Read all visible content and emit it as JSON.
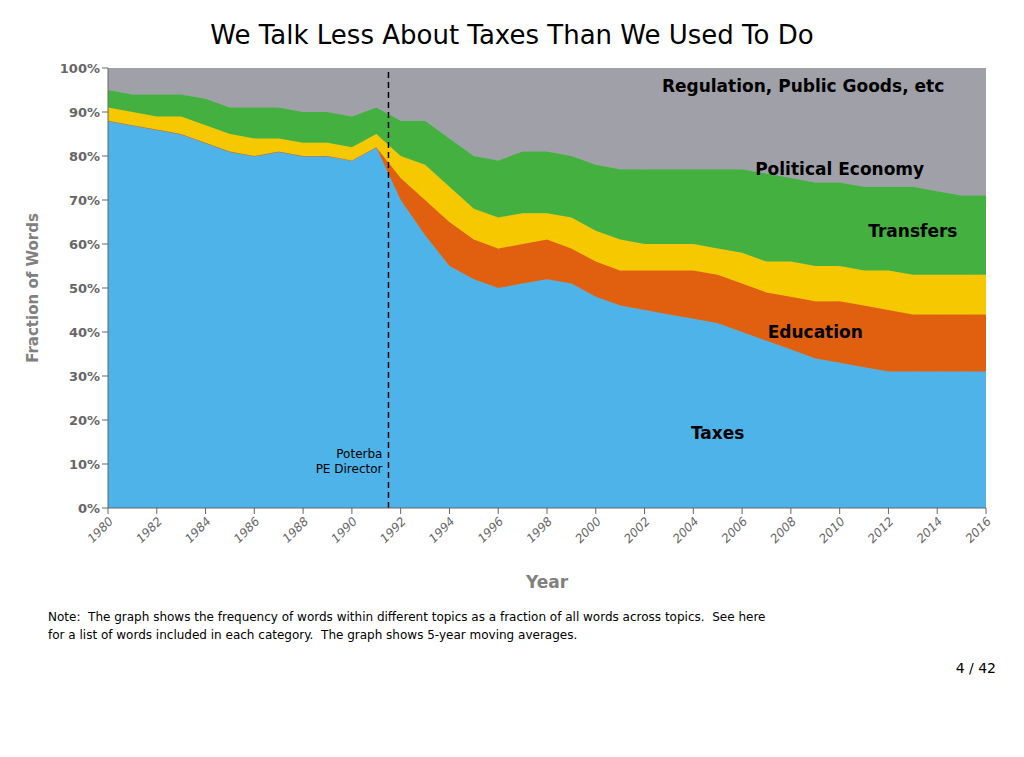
{
  "chart_data": {
    "type": "area",
    "stacked": true,
    "title": "We Talk Less About Taxes Than We Used To Do",
    "x_label": "Year",
    "y_label": "Fraction of Words",
    "x": [
      1980,
      1981,
      1982,
      1983,
      1984,
      1985,
      1986,
      1987,
      1988,
      1989,
      1990,
      1991,
      1992,
      1993,
      1994,
      1995,
      1996,
      1997,
      1998,
      1999,
      2000,
      2001,
      2002,
      2003,
      2004,
      2005,
      2006,
      2007,
      2008,
      2009,
      2010,
      2011,
      2012,
      2013,
      2014,
      2015,
      2016
    ],
    "series": [
      {
        "name": "Taxes",
        "color": "#4db3e8",
        "values": [
          88,
          87,
          86,
          85,
          83,
          81,
          80,
          81,
          80,
          80,
          79,
          82,
          70,
          62,
          55,
          52,
          50,
          51,
          52,
          51,
          48,
          46,
          45,
          44,
          43,
          42,
          40,
          38,
          36,
          34,
          33,
          32,
          31,
          31,
          31,
          31,
          31
        ]
      },
      {
        "name": "Education",
        "color": "#e06010",
        "values": [
          0,
          0,
          0,
          0,
          0,
          0,
          0,
          0,
          0,
          0,
          0,
          0,
          5,
          8,
          10,
          9,
          9,
          9,
          9,
          8,
          8,
          8,
          9,
          10,
          11,
          11,
          11,
          11,
          12,
          13,
          14,
          14,
          14,
          13,
          13,
          13,
          13
        ]
      },
      {
        "name": "Transfers",
        "color": "#f5c800",
        "values": [
          3,
          3,
          3,
          4,
          4,
          4,
          4,
          3,
          3,
          3,
          3,
          3,
          5,
          8,
          8,
          7,
          7,
          7,
          6,
          7,
          7,
          7,
          6,
          6,
          6,
          6,
          7,
          7,
          8,
          8,
          8,
          8,
          9,
          9,
          9,
          9,
          9
        ]
      },
      {
        "name": "Political Economy",
        "color": "#44b040",
        "values": [
          4,
          4,
          5,
          5,
          6,
          6,
          7,
          7,
          7,
          7,
          7,
          6,
          8,
          10,
          11,
          12,
          13,
          14,
          14,
          14,
          15,
          16,
          17,
          17,
          17,
          18,
          19,
          20,
          19,
          19,
          19,
          19,
          19,
          20,
          19,
          18,
          18
        ]
      },
      {
        "name": "Regulation, Public Goods, etc",
        "color": "#a0a0a8",
        "values": [
          5,
          6,
          6,
          6,
          7,
          9,
          9,
          9,
          10,
          10,
          11,
          9,
          12,
          12,
          16,
          20,
          21,
          19,
          19,
          20,
          22,
          23,
          23,
          23,
          23,
          23,
          23,
          24,
          25,
          26,
          26,
          27,
          27,
          27,
          28,
          29,
          29
        ]
      }
    ],
    "xlim": [
      1980,
      2016
    ],
    "xticks": [
      1980,
      1982,
      1984,
      1986,
      1988,
      1990,
      1992,
      1994,
      1996,
      1998,
      2000,
      2002,
      2004,
      2006,
      2008,
      2010,
      2012,
      2014,
      2016
    ],
    "ylim": [
      0,
      100
    ],
    "yticks": [
      {
        "value": 0,
        "label": "0%"
      },
      {
        "value": 10,
        "label": "10%"
      },
      {
        "value": 20,
        "label": "20%"
      },
      {
        "value": 30,
        "label": "30%"
      },
      {
        "value": 40,
        "label": "40%"
      },
      {
        "value": 50,
        "label": "50%"
      },
      {
        "value": 60,
        "label": "60%"
      },
      {
        "value": 70,
        "label": "70%"
      },
      {
        "value": 80,
        "label": "80%"
      },
      {
        "value": 90,
        "label": "90%"
      },
      {
        "value": 100,
        "label": "100%"
      }
    ],
    "grid": false,
    "vlines": [
      {
        "x": 1991.5,
        "label": "Poterba\nPE Director",
        "line_style": "dashed",
        "color": "#000000"
      }
    ],
    "annotations": [
      {
        "text": "Taxes",
        "x": 2005,
        "y": 17
      },
      {
        "text": "Education",
        "x": 2009,
        "y": 40
      },
      {
        "text": "Transfers",
        "x": 2013,
        "y": 63
      },
      {
        "text": "Political Economy",
        "x": 2010,
        "y": 77
      },
      {
        "text": "Regulation, Public Goods, etc",
        "x": 2008.5,
        "y": 96
      }
    ],
    "note": "Note:  The graph shows the frequency of words within different topics as a fraction of all words across topics.  See here\nfor a list of words included in each category.  The graph shows 5-year moving averages.",
    "page": "4 / 42"
  }
}
